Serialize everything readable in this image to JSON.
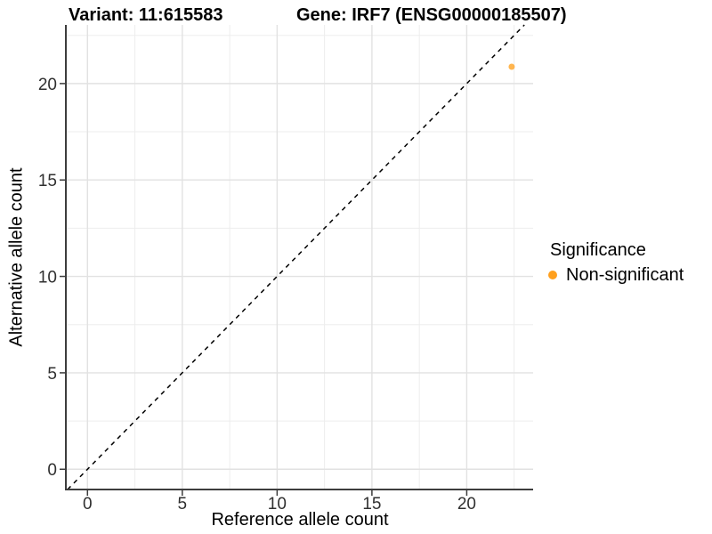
{
  "chart_data": {
    "type": "scatter",
    "title_left": "Variant: 11:615583",
    "title_right": "Gene: IRF7 (ENSG00000185507)",
    "xlabel": "Reference allele count",
    "ylabel": "Alternative allele count",
    "xlim": [
      -1.14,
      23.5
    ],
    "ylim": [
      -1.05,
      23.04
    ],
    "xticks": [
      0,
      5,
      10,
      15,
      20
    ],
    "yticks": [
      0,
      5,
      10,
      15,
      20
    ],
    "xticks_minor": [
      2.5,
      7.5,
      12.5,
      17.5,
      22.5
    ],
    "yticks_minor": [
      2.5,
      7.5,
      12.5,
      17.5,
      22.5
    ],
    "grid": "major and minor gridlines on white background",
    "identity_line": {
      "type": "abline y = x",
      "linetype": "dashed",
      "color": "#000000",
      "width": 1.5,
      "dash": "5 5"
    },
    "points": [
      {
        "x": 22,
        "y": 21,
        "plotted_x": 22.37,
        "plotted_y": 20.87,
        "series": "Non-significant",
        "color": "#FFA01E",
        "alpha": 0.78,
        "radius_px": 3.5
      }
    ],
    "legend": {
      "title": "Significance",
      "position": "right",
      "items": [
        {
          "label": "Non-significant",
          "color": "#FFA01E",
          "marker": "circle"
        }
      ]
    },
    "colors": {
      "grid_major": "#E2E2E2",
      "grid_minor": "#EDEDED",
      "axis_line": "#3D3D3D",
      "tick_text": "#303030",
      "background": "#FFFFFF"
    }
  }
}
